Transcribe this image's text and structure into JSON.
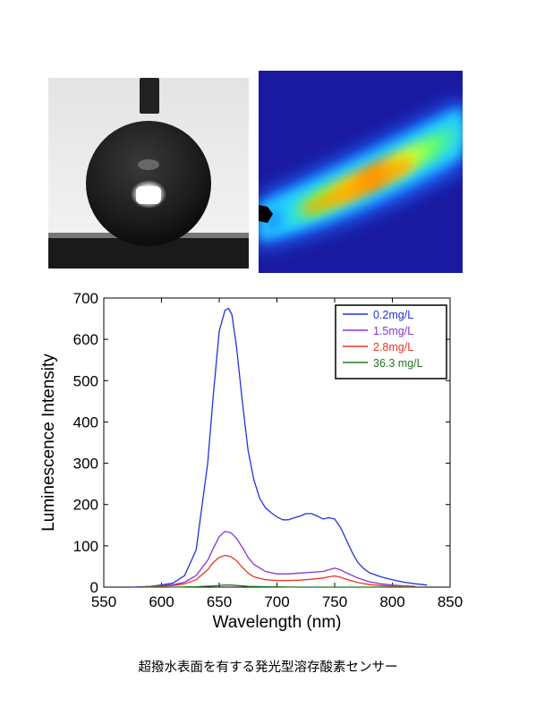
{
  "chart_data": {
    "type": "line",
    "xlabel": "Wavelength (nm)",
    "ylabel": "Luminescence Intensity",
    "xlim": [
      550,
      850
    ],
    "ylim": [
      0,
      700
    ],
    "xticks": [
      550,
      600,
      650,
      700,
      750,
      800,
      850
    ],
    "yticks": [
      0,
      100,
      200,
      300,
      400,
      500,
      600,
      700
    ],
    "grid": false,
    "legend_position": "top-right",
    "series": [
      {
        "name": "0.2mg/L",
        "color": "#2233dd",
        "x": [
          575,
          590,
          600,
          610,
          620,
          630,
          640,
          645,
          650,
          655,
          658,
          661,
          665,
          670,
          675,
          680,
          685,
          690,
          695,
          700,
          705,
          710,
          715,
          720,
          725,
          730,
          735,
          740,
          745,
          750,
          755,
          760,
          765,
          770,
          775,
          780,
          790,
          800,
          810,
          820,
          830
        ],
        "y": [
          0,
          2,
          5,
          10,
          28,
          90,
          300,
          470,
          620,
          670,
          675,
          660,
          580,
          450,
          330,
          260,
          215,
          192,
          180,
          170,
          163,
          163,
          168,
          172,
          178,
          178,
          172,
          165,
          168,
          165,
          145,
          115,
          85,
          60,
          45,
          35,
          25,
          18,
          12,
          8,
          5
        ]
      },
      {
        "name": "1.5mg/L",
        "color": "#8833dd",
        "x": [
          580,
          600,
          610,
          620,
          630,
          640,
          645,
          650,
          655,
          660,
          665,
          670,
          675,
          680,
          690,
          700,
          710,
          720,
          730,
          740,
          745,
          750,
          755,
          760,
          770,
          780,
          790,
          800,
          810,
          820
        ],
        "y": [
          0,
          3,
          6,
          12,
          28,
          65,
          95,
          122,
          135,
          132,
          118,
          96,
          72,
          55,
          38,
          32,
          32,
          34,
          36,
          38,
          42,
          46,
          42,
          35,
          22,
          13,
          8,
          5,
          3,
          2
        ]
      },
      {
        "name": "2.8mg/L",
        "color": "#ee3322",
        "x": [
          580,
          600,
          610,
          620,
          630,
          640,
          645,
          650,
          655,
          660,
          665,
          670,
          675,
          680,
          690,
          700,
          710,
          720,
          730,
          740,
          745,
          750,
          755,
          760,
          770,
          780,
          790,
          800,
          810,
          820
        ],
        "y": [
          0,
          2,
          4,
          8,
          18,
          42,
          60,
          72,
          77,
          74,
          64,
          48,
          34,
          25,
          18,
          16,
          16,
          17,
          19,
          22,
          25,
          27,
          24,
          19,
          11,
          6,
          4,
          2,
          1,
          0
        ]
      },
      {
        "name": "36.3 mg/L",
        "color": "#227722",
        "x": [
          580,
          610,
          630,
          645,
          655,
          660,
          665,
          675,
          690,
          720,
          760,
          800,
          820
        ],
        "y": [
          0,
          0,
          1,
          3,
          5,
          5,
          4,
          2,
          1,
          0,
          0,
          0,
          0
        ]
      }
    ]
  },
  "images": {
    "left_icon": "water-droplet-contact-angle-photo",
    "right_icon": "luminescence-heatmap-image"
  },
  "caption": "超撥水表面を有する発光型溶存酸素センサー"
}
